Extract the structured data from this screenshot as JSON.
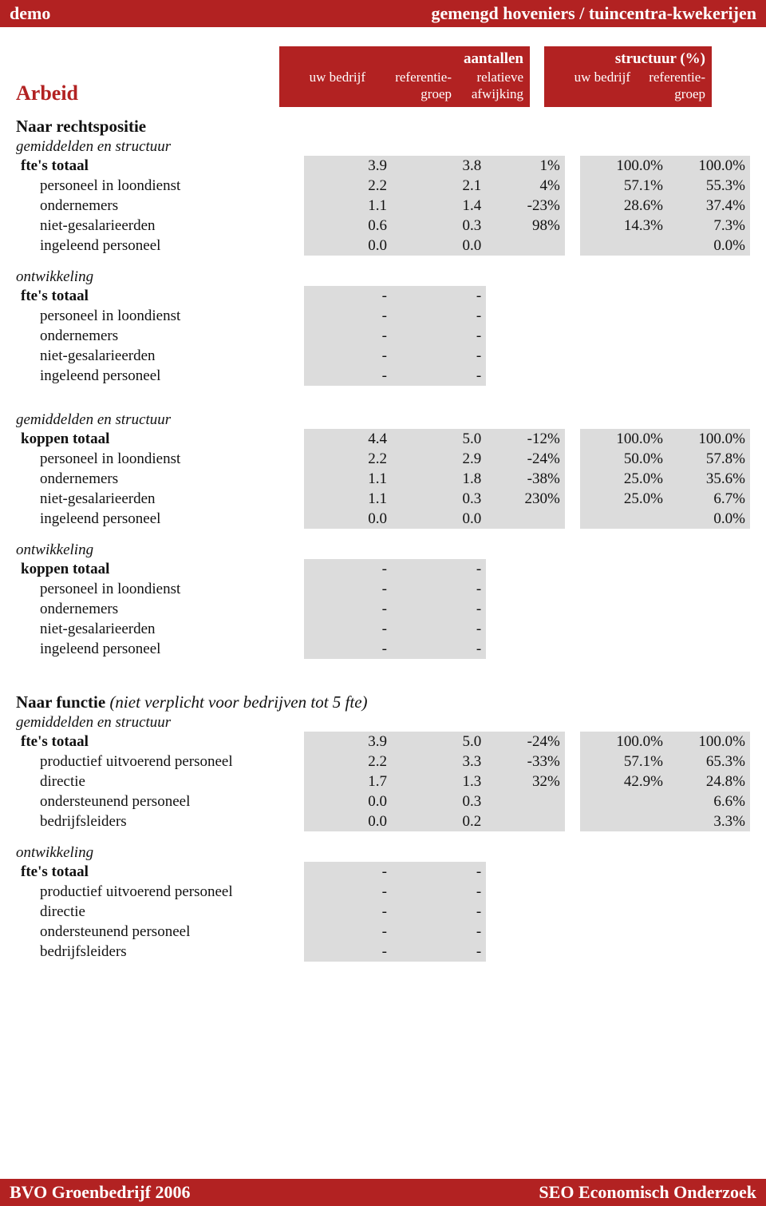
{
  "colors": {
    "brand": "#b22222",
    "shade": "#dcdcdc",
    "text": "#111111",
    "white": "#ffffff"
  },
  "topbar": {
    "left": "demo",
    "right": "gemengd hoveniers / tuincentra-kwekerijen"
  },
  "bottombar": {
    "left": "BVO Groenbedrijf 2006",
    "right": "SEO Economisch Onderzoek"
  },
  "page_title": "Arbeid",
  "header": {
    "left": {
      "top": "aantallen",
      "c1": "uw bedrijf",
      "c2": "referentie-\ngroep",
      "c3": "relatieve\nafwijking"
    },
    "right": {
      "top": "structuur (%)",
      "c1": "uw bedrijf",
      "c2": "referentie-\ngroep"
    }
  },
  "labels": {
    "naar_rechtspositie": "Naar rechtspositie",
    "gem_struct": "gemiddelden en structuur",
    "ontwikkeling": "ontwikkeling",
    "naar_functie_title": "Naar functie",
    "naar_functie_note": "(niet verplicht voor bedrijven tot 5 fte)"
  },
  "s1": {
    "rows": [
      {
        "label": "fte's totaal",
        "bold": true,
        "v": [
          "3.9",
          "3.8",
          "1%",
          "100.0%",
          "100.0%"
        ]
      },
      {
        "label": "personeel in loondienst",
        "v": [
          "2.2",
          "2.1",
          "4%",
          "57.1%",
          "55.3%"
        ]
      },
      {
        "label": "ondernemers",
        "v": [
          "1.1",
          "1.4",
          "-23%",
          "28.6%",
          "37.4%"
        ]
      },
      {
        "label": "niet-gesalarieerden",
        "v": [
          "0.6",
          "0.3",
          "98%",
          "14.3%",
          "7.3%"
        ]
      },
      {
        "label": "ingeleend personeel",
        "v": [
          "0.0",
          "0.0",
          "",
          "",
          "0.0%"
        ]
      }
    ]
  },
  "s1dev": {
    "rows": [
      {
        "label": "fte's totaal",
        "bold": true,
        "v": [
          "-",
          "-"
        ]
      },
      {
        "label": "personeel in loondienst",
        "v": [
          "-",
          "-"
        ]
      },
      {
        "label": "ondernemers",
        "v": [
          "-",
          "-"
        ]
      },
      {
        "label": "niet-gesalarieerden",
        "v": [
          "-",
          "-"
        ]
      },
      {
        "label": "ingeleend personeel",
        "v": [
          "-",
          "-"
        ]
      }
    ]
  },
  "s2": {
    "rows": [
      {
        "label": "koppen totaal",
        "bold": true,
        "v": [
          "4.4",
          "5.0",
          "-12%",
          "100.0%",
          "100.0%"
        ]
      },
      {
        "label": "personeel in loondienst",
        "v": [
          "2.2",
          "2.9",
          "-24%",
          "50.0%",
          "57.8%"
        ]
      },
      {
        "label": "ondernemers",
        "v": [
          "1.1",
          "1.8",
          "-38%",
          "25.0%",
          "35.6%"
        ]
      },
      {
        "label": "niet-gesalarieerden",
        "v": [
          "1.1",
          "0.3",
          "230%",
          "25.0%",
          "6.7%"
        ]
      },
      {
        "label": "ingeleend personeel",
        "v": [
          "0.0",
          "0.0",
          "",
          "",
          "0.0%"
        ]
      }
    ]
  },
  "s2dev": {
    "rows": [
      {
        "label": "koppen totaal",
        "bold": true,
        "v": [
          "-",
          "-"
        ]
      },
      {
        "label": "personeel in loondienst",
        "v": [
          "-",
          "-"
        ]
      },
      {
        "label": "ondernemers",
        "v": [
          "-",
          "-"
        ]
      },
      {
        "label": "niet-gesalarieerden",
        "v": [
          "-",
          "-"
        ]
      },
      {
        "label": "ingeleend personeel",
        "v": [
          "-",
          "-"
        ]
      }
    ]
  },
  "s3": {
    "rows": [
      {
        "label": "fte's totaal",
        "bold": true,
        "v": [
          "3.9",
          "5.0",
          "-24%",
          "100.0%",
          "100.0%"
        ]
      },
      {
        "label": "productief uitvoerend personeel",
        "v": [
          "2.2",
          "3.3",
          "-33%",
          "57.1%",
          "65.3%"
        ]
      },
      {
        "label": "directie",
        "v": [
          "1.7",
          "1.3",
          "32%",
          "42.9%",
          "24.8%"
        ]
      },
      {
        "label": "ondersteunend personeel",
        "v": [
          "0.0",
          "0.3",
          "",
          "",
          "6.6%"
        ]
      },
      {
        "label": "bedrijfsleiders",
        "v": [
          "0.0",
          "0.2",
          "",
          "",
          "3.3%"
        ]
      }
    ]
  },
  "s3dev": {
    "rows": [
      {
        "label": "fte's totaal",
        "bold": true,
        "v": [
          "-",
          "-"
        ]
      },
      {
        "label": "productief uitvoerend personeel",
        "v": [
          "-",
          "-"
        ]
      },
      {
        "label": "directie",
        "v": [
          "-",
          "-"
        ]
      },
      {
        "label": "ondersteunend personeel",
        "v": [
          "-",
          "-"
        ]
      },
      {
        "label": "bedrijfsleiders",
        "v": [
          "-",
          "-"
        ]
      }
    ]
  }
}
